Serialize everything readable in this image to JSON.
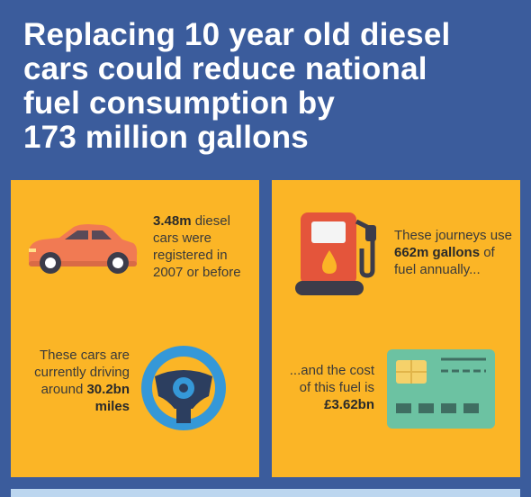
{
  "title": {
    "lines": [
      "Replacing 10 year old diesel",
      "cars could reduce national",
      "fuel consumption by",
      "173 million gallons"
    ]
  },
  "panels": [
    {
      "items": [
        {
          "parts": [
            {
              "text": "3.48m",
              "bold": true
            },
            {
              "text": " diesel cars were registered in 2007 or before",
              "bold": false
            }
          ]
        },
        {
          "parts": [
            {
              "text": "These cars are currently driving around ",
              "bold": false
            },
            {
              "text": "30.2bn miles",
              "bold": true
            }
          ]
        }
      ]
    },
    {
      "items": [
        {
          "parts": [
            {
              "text": "These journeys use ",
              "bold": false
            },
            {
              "text": "662m gallons",
              "bold": true
            },
            {
              "text": " of fuel annually...",
              "bold": false
            }
          ]
        },
        {
          "parts": [
            {
              "text": "...and the cost of this fuel is ",
              "bold": false
            },
            {
              "text": "£3.62bn",
              "bold": true
            }
          ]
        }
      ]
    }
  ]
}
